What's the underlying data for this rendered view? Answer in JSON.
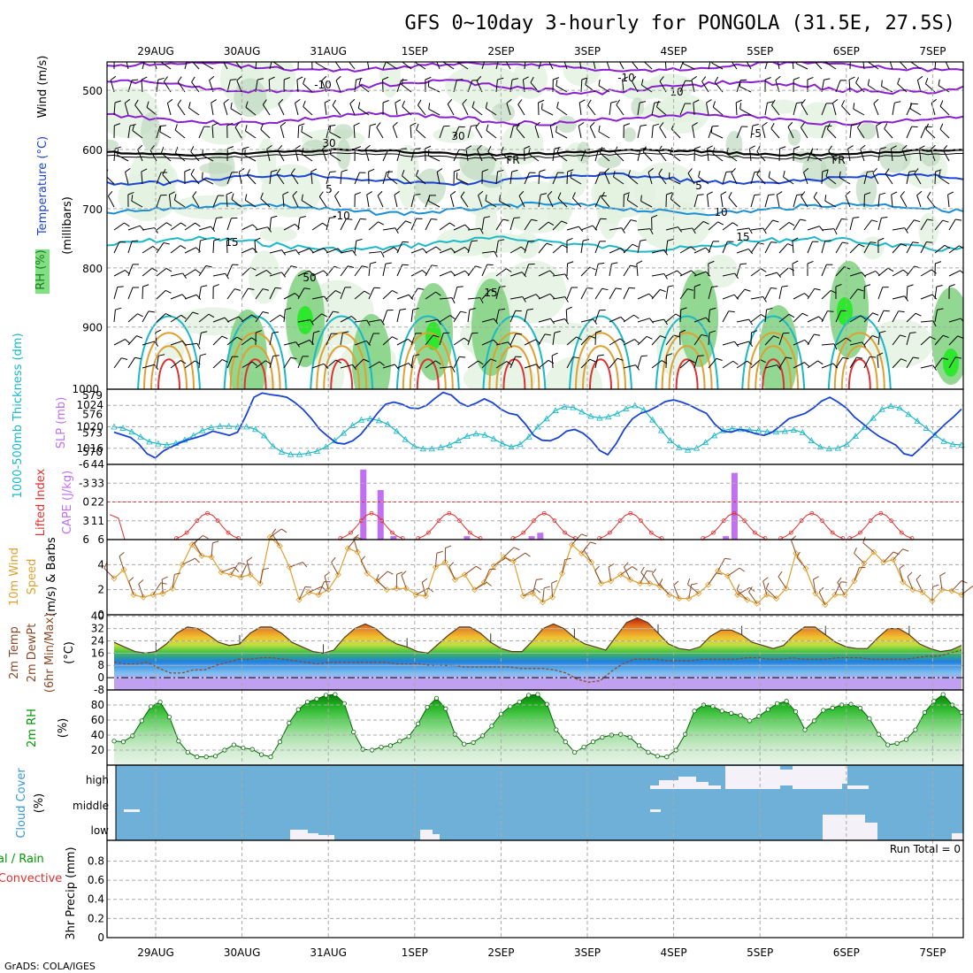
{
  "title": "GFS 0~10day 3-hourly for PONGOLA (31.5E, 27.5S)",
  "footer": "GrADS: COLA/IGES",
  "run_total": "Run Total = 0",
  "colors": {
    "purple": "#8a1fd0",
    "blue": "#1a44d6",
    "midblue": "#1a8fd6",
    "cyan": "#1ab8c8",
    "orange": "#e0a030",
    "red": "#e03030",
    "green": "#2ec82e",
    "cloudblue": "#6fb0d8",
    "lilac": "#c070f0",
    "brown": "#8b4a2a"
  },
  "chart_data": {
    "type": "line",
    "dates": [
      "29AUG",
      "30AUG",
      "31AUG",
      "1SEP",
      "2SEP",
      "3SEP",
      "4SEP",
      "5SEP",
      "6SEP",
      "7SEP"
    ],
    "panels": [
      {
        "id": "upper-air",
        "ylabel": [
          "Wind (m/s)",
          "Temperature (°C)",
          "RH (%)",
          "(millibars)"
        ],
        "yticks": [
          "500",
          "600",
          "700",
          "800",
          "900",
          "1000"
        ],
        "contour_labels": [
          "-10",
          "-10",
          "-5",
          "FR",
          "FR",
          "5",
          "5",
          "-10",
          "10",
          "15",
          "15",
          "15",
          "50",
          "30",
          "30",
          "10"
        ]
      },
      {
        "id": "slp-thickness",
        "ylabel_left": "1000-500mb Thickness (dm)",
        "ylabel_right": "SLP (mb)",
        "left_ticks": [
          "579",
          "576",
          "573",
          "570"
        ],
        "right_ticks": [
          "1024",
          "1020",
          "1016"
        ],
        "ylim_slp": [
          1013,
          1027
        ],
        "ylim_thk": [
          568,
          580
        ],
        "slp": [
          1019,
          1018.5,
          1018,
          1016.8,
          1015,
          1014.2,
          1015.5,
          1016.3,
          1017,
          1017.6,
          1018,
          1018.5,
          1019.2,
          1018.8,
          1018.4,
          1019,
          1022,
          1025.5,
          1026.3,
          1026,
          1025.8,
          1025.5,
          1024.5,
          1023.2,
          1021.5,
          1019.5,
          1018.2,
          1017,
          1016.8,
          1017.4,
          1018.6,
          1020.5,
          1022.5,
          1024.2,
          1024.6,
          1024.2,
          1023.5,
          1023.4,
          1024,
          1025.3,
          1026.4,
          1025.9,
          1024.5,
          1023.8,
          1024.4,
          1025.2,
          1024.5,
          1023.3,
          1022.5,
          1022.2,
          1020.5,
          1018.4,
          1017.5,
          1017.4,
          1018,
          1019.2,
          1019.5,
          1018.8,
          1017.5,
          1015.6,
          1014.8,
          1016.8,
          1019.5,
          1021.5,
          1022.5,
          1023,
          1023.8,
          1024.7,
          1025,
          1024.6,
          1024,
          1023.2,
          1022.5,
          1020.5,
          1019.2,
          1019,
          1019.5,
          1019.2,
          1018.7,
          1018.4,
          1019,
          1020.2,
          1021.5,
          1022,
          1022.5,
          1023.5,
          1024.8,
          1025.5,
          1024.6,
          1023.5,
          1021.8,
          1020.6,
          1019.3,
          1018.2,
          1017.4,
          1016.6,
          1015,
          1014.6,
          1016,
          1017.5,
          1019,
          1020.5,
          1021.8,
          1023.3
        ],
        "thickness": [
          574,
          573.8,
          573.2,
          572.4,
          571.6,
          571.3,
          571.1,
          571.4,
          571.9,
          572.6,
          573.4,
          573.9,
          574.1,
          574.1,
          574,
          574,
          573.6,
          572.6,
          570.9,
          570,
          569.6,
          569.6,
          569.8,
          570.1,
          570.8,
          571.8,
          573,
          574.2,
          575.1,
          575.3,
          575,
          574.4,
          573.3,
          572,
          570.9,
          570.5,
          570.5,
          570.7,
          571.1,
          571.8,
          572.5,
          572.9,
          572.7,
          572.1,
          571.3,
          570.8,
          571.2,
          572.4,
          574,
          575.3,
          576.6,
          577.2,
          577.1,
          576.4,
          575.7,
          575.4,
          575.6,
          576.1,
          576.9,
          577.4,
          576.7,
          575.1,
          573.4,
          571.8,
          570.7,
          570.3,
          570.6,
          571.5,
          572.6,
          573.4,
          573.7,
          573.6,
          573.5,
          573.4,
          573.2,
          573.2,
          573.3,
          573.5,
          573.1,
          571.8,
          570.8,
          570.5,
          570.6,
          571.2,
          572.5,
          573.9,
          575.4,
          576.8,
          577.3,
          577,
          576,
          574.9,
          573.8,
          572.7,
          571.7,
          571.2,
          571.1
        ]
      },
      {
        "id": "cape-li",
        "ylabel_left": "Lifted Index",
        "ylabel_right": "CAPE (J/kg)",
        "left_ticks": [
          "-6",
          "-3",
          "0",
          "3",
          "6"
        ],
        "right_ticks": [
          "44",
          "33",
          "22",
          "11"
        ],
        "ylim_li": [
          6,
          -6
        ],
        "ylim_cape": [
          0,
          44
        ],
        "li": [
          2,
          2.6
        ],
        "cape_bars": [
          [
            2.4,
            41
          ],
          [
            2.6,
            29
          ],
          [
            2.75,
            2
          ],
          [
            3.6,
            2
          ],
          [
            4.35,
            2
          ],
          [
            4.45,
            4
          ],
          [
            6.6,
            2
          ],
          [
            6.7,
            39
          ]
        ]
      },
      {
        "id": "wind10m",
        "ylabel": [
          "10m Wind",
          "Speed",
          "(m/s) & Barbs"
        ],
        "yticks": [
          "0",
          "2",
          "4",
          "6"
        ],
        "ylim": [
          0,
          6
        ],
        "speed": [
          2.9,
          3.6,
          1.6,
          1.4,
          1.6,
          1.7,
          2.1,
          4.0,
          5.6,
          4.7,
          4.6,
          3.4,
          3.2,
          3.0,
          3.2,
          2.5,
          6.2,
          5.5,
          3.8,
          1.2,
          1.8,
          1.6,
          2.0,
          3.2,
          5.3,
          5.0,
          3.3,
          2.7,
          2.0,
          2.1,
          2.1,
          1.6,
          1.5,
          3.8,
          4.2,
          2.8,
          3.2,
          2.0,
          2.6,
          3.9,
          4.6,
          4.3,
          1.5,
          1.7,
          1.0,
          1.4,
          3.3,
          5.6,
          4.9,
          4.2,
          2.5,
          2.7,
          3.2,
          2.8,
          2.5,
          2.5,
          2.3,
          1.6,
          1.3,
          1.3,
          1.7,
          2.4,
          3.5,
          3.1,
          1.6,
          1.2,
          0.9,
          1.6,
          1.3,
          2.1,
          4.9,
          3.7,
          1.7,
          0.8,
          1.6,
          1.6,
          2.7,
          4.1,
          5.0,
          4.2,
          4.4,
          2.6,
          2.0,
          1.8,
          1.1,
          2.0,
          1.9,
          1.6
        ]
      },
      {
        "id": "temp2m",
        "ylabel": [
          "2m Temp",
          "2m DewPt",
          "(6hr Min/Max)",
          "(°C)"
        ],
        "yticks": [
          "40",
          "32",
          "24",
          "16",
          "8",
          "0",
          "-8"
        ],
        "ylim": [
          -8,
          41
        ],
        "temp": [
          23,
          20,
          17,
          16,
          17,
          22,
          29,
          33,
          32,
          28,
          23,
          21,
          22,
          29,
          33,
          33,
          29,
          23,
          20,
          17,
          16,
          18,
          26,
          32,
          35,
          32,
          26,
          22,
          20,
          17,
          16,
          22,
          28,
          33,
          33,
          29,
          23,
          19,
          17,
          17,
          24,
          32,
          35,
          32,
          26,
          22,
          20,
          18,
          27,
          36,
          39,
          36,
          29,
          22,
          19,
          18,
          20,
          27,
          31,
          31,
          28,
          23,
          21,
          19,
          21,
          28,
          33,
          33,
          28,
          23,
          20,
          19,
          19,
          26,
          32,
          32,
          28,
          22,
          19,
          17,
          18,
          21
        ],
        "dewpoint": [
          10,
          9,
          9,
          10,
          6,
          3,
          3,
          5,
          5,
          8,
          10,
          12,
          12,
          13,
          13,
          12,
          11,
          10,
          9,
          10,
          10,
          10,
          10,
          10,
          10,
          9,
          9,
          9,
          8,
          8,
          8,
          7,
          7,
          7,
          7,
          7,
          6,
          6,
          6,
          5,
          3,
          -1,
          -3,
          -2,
          4,
          9,
          12,
          12,
          12,
          11,
          11,
          11,
          12,
          12,
          12,
          12,
          13,
          13,
          12,
          12,
          13,
          12,
          12,
          12,
          13,
          13,
          13,
          12,
          12,
          12,
          12,
          13,
          14,
          14,
          16,
          18
        ]
      },
      {
        "id": "rh2m",
        "ylabel": [
          "2m RH",
          "(%)"
        ],
        "yticks": [
          "80",
          "60",
          "40",
          "20"
        ],
        "ylim": [
          0,
          100
        ],
        "rh": [
          32,
          31,
          39,
          59,
          78,
          84,
          64,
          32,
          17,
          11,
          11,
          12,
          20,
          27,
          23,
          21,
          14,
          11,
          31,
          56,
          74,
          84,
          88,
          93,
          94,
          82,
          44,
          21,
          20,
          24,
          26,
          32,
          38,
          55,
          77,
          89,
          75,
          41,
          28,
          30,
          39,
          52,
          68,
          78,
          84,
          93,
          94,
          81,
          47,
          31,
          17,
          24,
          31,
          37,
          40,
          41,
          37,
          26,
          17,
          12,
          11,
          20,
          41,
          72,
          80,
          78,
          72,
          69,
          66,
          59,
          65,
          74,
          82,
          85,
          71,
          47,
          59,
          73,
          76,
          80,
          81,
          76,
          62,
          41,
          27,
          29,
          34,
          47,
          70,
          85,
          94,
          80,
          70
        ]
      },
      {
        "id": "cloud",
        "ylabel": [
          "Cloud Cover",
          "(%)"
        ],
        "yticks": [
          "high",
          "middle",
          "low"
        ]
      },
      {
        "id": "precip",
        "ylabel": [
          "Total / Rain",
          "Convective",
          "3hr Precip (mm)"
        ],
        "yticks": [
          "0.8",
          "0.6",
          "0.4",
          "0.2",
          "0"
        ],
        "ylim": [
          0,
          1
        ],
        "values": []
      }
    ]
  }
}
